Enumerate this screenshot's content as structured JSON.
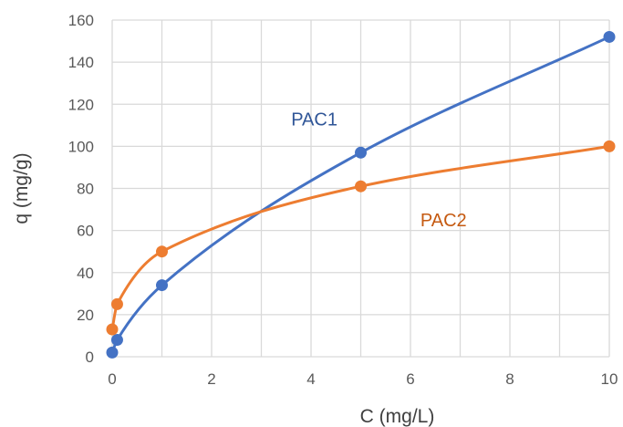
{
  "chart_data": {
    "type": "scatter",
    "title": "",
    "xlabel": "C (mg/L)",
    "ylabel": "q (mg/g)",
    "xlim": [
      0,
      10
    ],
    "ylim": [
      0,
      160
    ],
    "xticks": [
      0,
      2,
      4,
      6,
      8,
      10
    ],
    "yticks": [
      0,
      20,
      40,
      60,
      80,
      100,
      120,
      140,
      160
    ],
    "grid": true,
    "legend": "none",
    "series": [
      {
        "name": "PAC1",
        "color": "#4472C4",
        "x": [
          0,
          0.1,
          1,
          5,
          10
        ],
        "y": [
          2,
          8,
          34,
          97,
          152
        ]
      },
      {
        "name": "PAC2",
        "color": "#ED7D31",
        "x": [
          0,
          0.1,
          1,
          5,
          10
        ],
        "y": [
          13,
          25,
          50,
          81,
          100
        ]
      }
    ]
  }
}
